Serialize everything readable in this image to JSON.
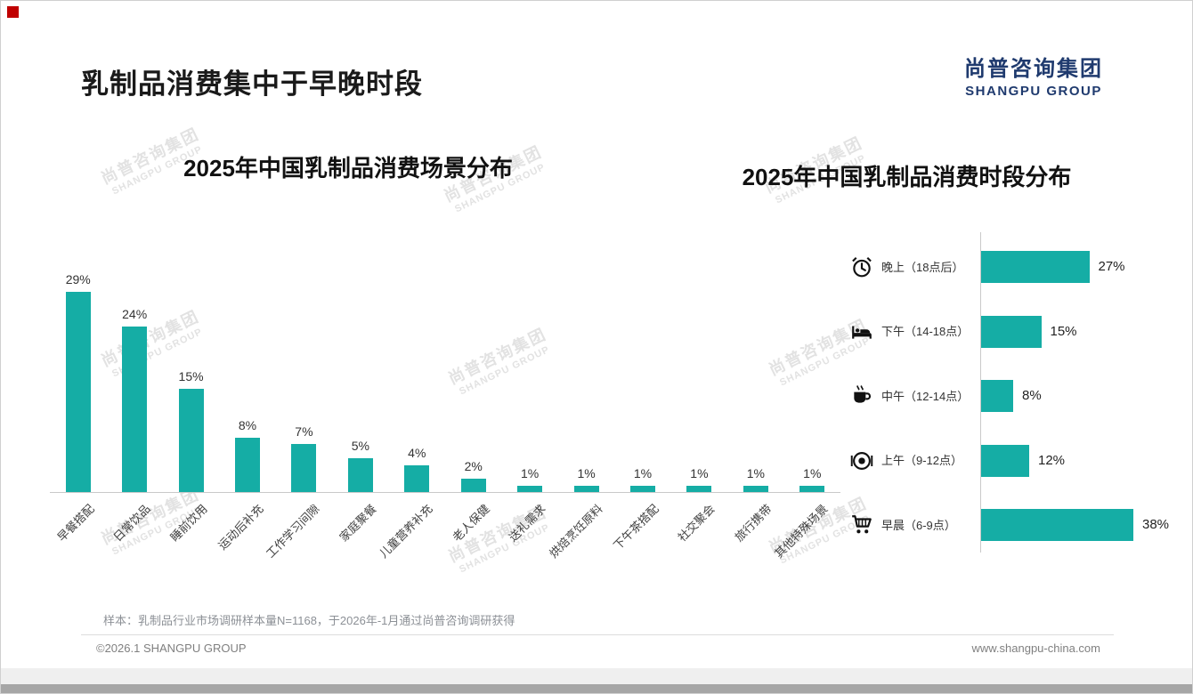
{
  "page": {
    "title": "乳制品消费集中于早晚时段",
    "logo": {
      "cn": "尚普咨询集团",
      "en": "SHANGPU GROUP"
    },
    "watermark": {
      "cn": "尚普咨询集团",
      "en": "SHANGPU GROUP"
    },
    "footnote": "样本：乳制品行业市场调研样本量N=1168，于2026年-1月通过尚普咨询调研获得",
    "copyright": "©2026.1 SHANGPU GROUP",
    "website": "www.shangpu-china.com"
  },
  "colors": {
    "accent_teal": "#15ADA5",
    "logo_navy": "#1F3A6E",
    "corner_red": "#C00000"
  },
  "chart_data": [
    {
      "type": "bar",
      "orientation": "vertical",
      "title": "2025年中国乳制品消费场景分布",
      "categories": [
        "早餐搭配",
        "日常饮品",
        "睡前饮用",
        "运动后补充",
        "工作学习间隙",
        "家庭聚餐",
        "儿童营养补充",
        "老人保健",
        "送礼需求",
        "烘焙烹饪原料",
        "下午茶搭配",
        "社交聚会",
        "旅行携带",
        "其他特殊场景"
      ],
      "values": [
        29,
        24,
        15,
        8,
        7,
        5,
        4,
        2,
        1,
        1,
        1,
        1,
        1,
        1
      ],
      "unit": "%",
      "ylim": [
        0,
        30
      ],
      "grid": false,
      "value_labels": true,
      "legend": "none"
    },
    {
      "type": "bar",
      "orientation": "horizontal",
      "title": "2025年中国乳制品消费时段分布",
      "categories": [
        "晚上（18点后）",
        "下午（14-18点）",
        "中午（12-14点）",
        "上午（9-12点）",
        "早晨（6-9点）"
      ],
      "icons": [
        "alarm-clock",
        "bed",
        "coffee-cup",
        "plate-cutlery",
        "shopping-cart"
      ],
      "values": [
        27,
        15,
        8,
        12,
        38
      ],
      "unit": "%",
      "xlim": [
        0,
        40
      ],
      "grid": false,
      "value_labels": true,
      "legend": "none"
    }
  ]
}
